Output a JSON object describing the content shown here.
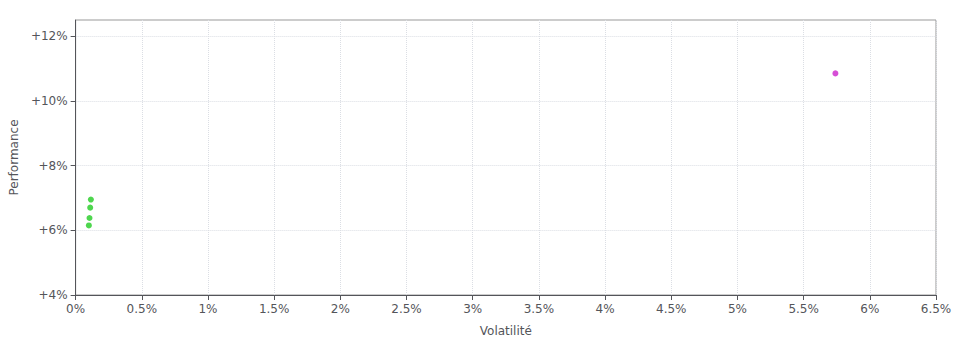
{
  "chart_data": {
    "type": "scatter",
    "xlabel": "Volatilité",
    "ylabel": "Performance",
    "series": [
      {
        "color": "#22cc22",
        "x": [
          0.00115,
          0.0011,
          0.00105,
          0.001
        ],
        "values": [
          0.0695,
          0.067,
          0.0638,
          0.0615
        ]
      },
      {
        "color": "#cc22cc",
        "x": [
          0.0574
        ],
        "values": [
          0.1085
        ]
      }
    ],
    "xlim": [
      0.0,
      0.065
    ],
    "ylim": [
      0.04,
      0.125
    ],
    "xticks": [
      {
        "value": 0.0,
        "label": "0%"
      },
      {
        "value": 0.005,
        "label": "0.5%"
      },
      {
        "value": 0.01,
        "label": "1%"
      },
      {
        "value": 0.015,
        "label": "1.5%"
      },
      {
        "value": 0.02,
        "label": "2%"
      },
      {
        "value": 0.025,
        "label": "2.5%"
      },
      {
        "value": 0.03,
        "label": "3%"
      },
      {
        "value": 0.035,
        "label": "3.5%"
      },
      {
        "value": 0.04,
        "label": "4%"
      },
      {
        "value": 0.045,
        "label": "4.5%"
      },
      {
        "value": 0.05,
        "label": "5%"
      },
      {
        "value": 0.055,
        "label": "5.5%"
      },
      {
        "value": 0.06,
        "label": "6%"
      },
      {
        "value": 0.065,
        "label": "6.5%"
      }
    ],
    "yticks": [
      {
        "value": 0.04,
        "label": "+4%"
      },
      {
        "value": 0.06,
        "label": "+6%"
      },
      {
        "value": 0.08,
        "label": "+8%"
      },
      {
        "value": 0.1,
        "label": "+10%"
      },
      {
        "value": 0.12,
        "label": "+12%"
      }
    ],
    "grid": true
  }
}
